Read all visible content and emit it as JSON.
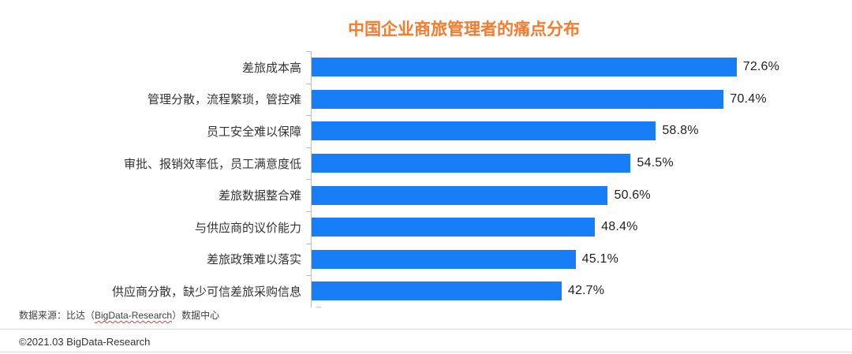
{
  "title": "中国企业商旅管理者的痛点分布",
  "chart_data": {
    "type": "bar",
    "orientation": "horizontal",
    "title": "中国企业商旅管理者的痛点分布",
    "categories": [
      "差旅成本高",
      "管理分散，流程繁琐，管控难",
      "员工安全难以保障",
      "审批、报销效率低，员工满意度低",
      "差旅数据整合难",
      "与供应商的议价能力",
      "差旅政策难以落实",
      "供应商分散，缺少可信差旅采购信息"
    ],
    "values": [
      72.6,
      70.4,
      58.8,
      54.5,
      50.6,
      48.4,
      45.1,
      42.7
    ],
    "value_labels": [
      "72.6%",
      "70.4%",
      "58.8%",
      "54.5%",
      "50.6%",
      "48.4%",
      "45.1%",
      "42.7%"
    ],
    "unit": "%",
    "xlim": [
      0,
      88
    ],
    "grid": false,
    "legend": false,
    "bar_color": "#187EF8"
  },
  "theme": {
    "title_color": "#F87A2C",
    "bar_color": "#187EF8",
    "axis_color": "#BFBFBF",
    "label_color": "#333333",
    "value_color": "#222222",
    "divider_color": "#D9D9D9",
    "footer_color": "#3F3F3F"
  },
  "footer": {
    "source_prefix": "数据来源：比达（",
    "source_latin": "BigData-Research",
    "source_suffix": "）数据中心",
    "copyright": "©2021.03 BigData-Research"
  }
}
